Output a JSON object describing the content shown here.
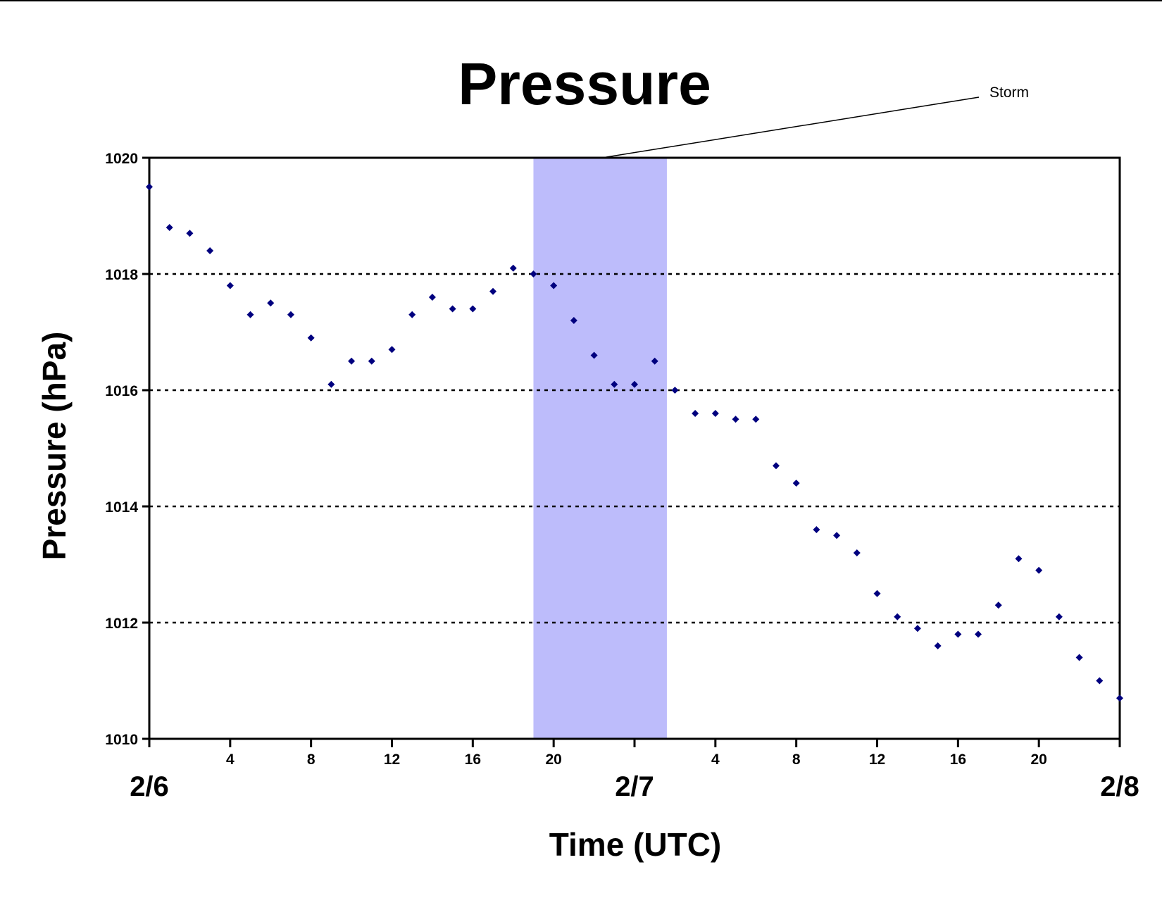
{
  "chart_data": {
    "type": "scatter",
    "title": "Pressure",
    "xlabel": "Time (UTC)",
    "ylabel": "Pressure (hPa)",
    "ylim": [
      1010,
      1020
    ],
    "yticks": [
      1010,
      1012,
      1014,
      1016,
      1018,
      1020
    ],
    "xlim_hours": [
      0,
      48
    ],
    "x_unit": "hours since 2/6 00 UTC",
    "x_tick_hours": [
      4,
      8,
      12,
      16,
      20,
      28,
      32,
      36,
      40,
      44
    ],
    "x_tick_labels": [
      "4",
      "8",
      "12",
      "16",
      "20",
      "4",
      "8",
      "12",
      "16",
      "20"
    ],
    "date_labels": [
      {
        "hour": 0,
        "label": "2/6"
      },
      {
        "hour": 24,
        "label": "2/7"
      },
      {
        "hour": 48,
        "label": "2/8"
      }
    ],
    "grid": {
      "horizontal_dotted": [
        1012,
        1014,
        1016,
        1018
      ]
    },
    "storm_band": {
      "x_start": 19,
      "x_end": 25.6,
      "label": "Storm",
      "color": "#bdbcfb"
    },
    "marker_color": "#00007f",
    "series": [
      {
        "x": [
          0,
          1,
          2,
          3,
          4,
          5,
          6,
          7,
          8,
          9,
          10,
          11,
          12,
          13,
          14,
          15,
          16,
          17,
          18,
          19,
          20,
          21,
          22,
          23,
          24,
          25,
          26,
          27,
          28,
          29,
          30,
          31,
          32,
          33,
          34,
          35,
          36,
          37,
          38,
          39,
          40,
          41,
          42,
          43,
          44,
          45,
          46,
          47,
          48
        ],
        "y": [
          1019.5,
          1018.8,
          1018.7,
          1018.4,
          1017.8,
          1017.3,
          1017.5,
          1017.3,
          1016.9,
          1016.1,
          1016.5,
          1016.5,
          1016.7,
          1017.3,
          1017.6,
          1017.4,
          1017.4,
          1017.7,
          1018.1,
          1018.0,
          1017.8,
          1017.2,
          1016.6,
          1016.1,
          1016.1,
          1016.5,
          1016.0,
          1015.6,
          1015.6,
          1015.5,
          1015.5,
          1014.7,
          1014.4,
          1013.6,
          1013.5,
          1013.2,
          1012.5,
          1012.1,
          1011.9,
          1011.6,
          1011.8,
          1011.8,
          1012.3,
          1013.1,
          1012.9,
          1012.1,
          1011.4,
          1011.0,
          1010.7
        ]
      }
    ]
  }
}
